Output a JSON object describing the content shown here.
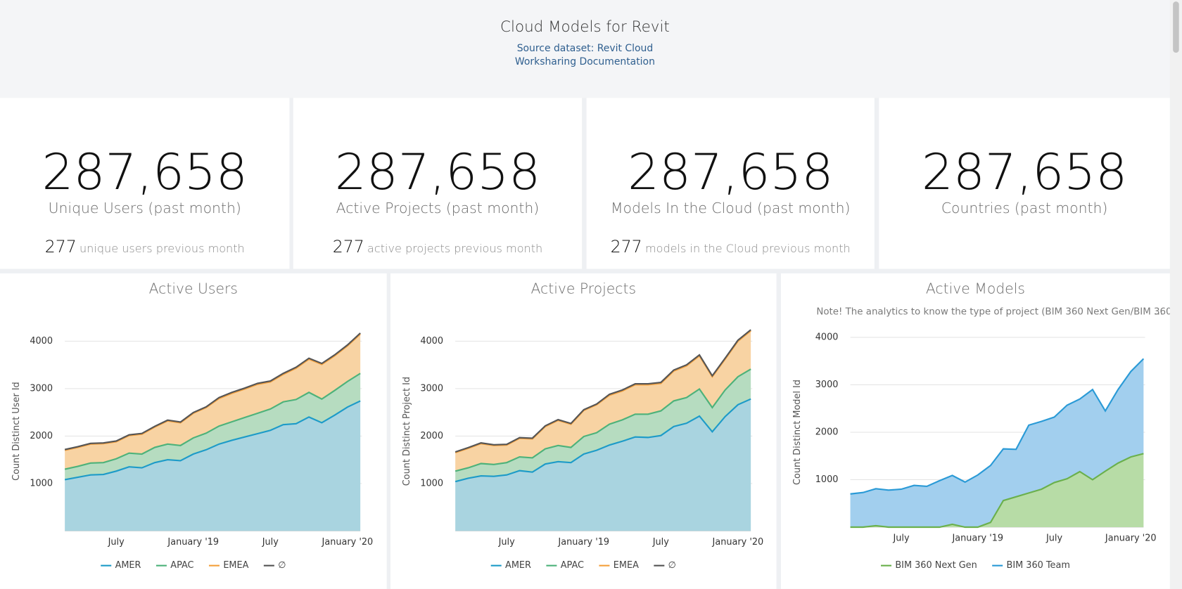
{
  "header": {
    "title": "Cloud Models for Revit",
    "source": "Source dataset: Revit Cloud Worksharing Documentation"
  },
  "kpis": [
    {
      "value": "287,658",
      "label": "Unique Users (past month)",
      "previous": "277",
      "previous_label": "unique users previous month"
    },
    {
      "value": "287,658",
      "label": "Active Projects (past month)",
      "previous": "277",
      "previous_label": "active projects previous month"
    },
    {
      "value": "287,658",
      "label": "Models In the Cloud (past month)",
      "previous": "277",
      "previous_label": "models in the Cloud previous month"
    },
    {
      "value": "287,658",
      "label": "Countries (past month)"
    }
  ],
  "chart_data": [
    {
      "type": "area",
      "stacked": true,
      "title": "Active Users",
      "y_label": "Count Distinct User Id",
      "categories": [
        null,
        null,
        null,
        null,
        "July",
        null,
        null,
        null,
        null,
        null,
        "January '19",
        null,
        null,
        null,
        null,
        null,
        "July",
        null,
        null,
        null,
        null,
        null,
        "January '20",
        null
      ],
      "ylim": [
        0,
        4200
      ],
      "yticks": [
        1000,
        2000,
        3000,
        4000
      ],
      "grid": true,
      "series": [
        {
          "name": "AMER",
          "color": "#1d9bc8",
          "fill": "#a9d4e0",
          "values": [
            1080,
            1130,
            1180,
            1190,
            1260,
            1350,
            1330,
            1440,
            1500,
            1480,
            1620,
            1710,
            1830,
            1910,
            1980,
            2050,
            2120,
            2240,
            2260,
            2400,
            2280,
            2440,
            2610,
            2740
          ]
        },
        {
          "name": "APAC",
          "color": "#4db27a",
          "fill": "#b6dcc0",
          "values": [
            220,
            230,
            250,
            250,
            260,
            290,
            290,
            320,
            330,
            320,
            340,
            350,
            380,
            390,
            410,
            430,
            450,
            480,
            510,
            520,
            500,
            520,
            540,
            580
          ]
        },
        {
          "name": "EMEA",
          "color": "#f4a03c",
          "fill": "#f8d3a3",
          "values": [
            400,
            400,
            400,
            400,
            360,
            370,
            420,
            430,
            490,
            480,
            520,
            540,
            580,
            600,
            600,
            610,
            570,
            580,
            660,
            700,
            730,
            730,
            750,
            830
          ]
        },
        {
          "name": "∅",
          "color": "#555555",
          "fill": "#8a8a8a",
          "values": [
            15,
            15,
            15,
            15,
            15,
            15,
            15,
            15,
            15,
            15,
            15,
            15,
            20,
            20,
            20,
            20,
            20,
            20,
            20,
            20,
            20,
            20,
            20,
            20
          ]
        }
      ]
    },
    {
      "type": "area",
      "stacked": true,
      "title": "Active Projects",
      "y_label": "Count Distinct Project Id",
      "categories": [
        null,
        null,
        null,
        null,
        "July",
        null,
        null,
        null,
        null,
        null,
        "January '19",
        null,
        null,
        null,
        null,
        null,
        "July",
        null,
        null,
        null,
        null,
        null,
        "January '20",
        null
      ],
      "ylim": [
        0,
        4200
      ],
      "yticks": [
        1000,
        2000,
        3000,
        4000
      ],
      "grid": true,
      "series": [
        {
          "name": "AMER",
          "color": "#1d9bc8",
          "fill": "#a9d4e0",
          "values": [
            1040,
            1110,
            1160,
            1150,
            1180,
            1270,
            1240,
            1410,
            1460,
            1440,
            1620,
            1700,
            1810,
            1890,
            1980,
            1970,
            2010,
            2200,
            2270,
            2420,
            2090,
            2410,
            2660,
            2780
          ]
        },
        {
          "name": "APAC",
          "color": "#4db27a",
          "fill": "#b6dcc0",
          "values": [
            220,
            220,
            260,
            250,
            260,
            290,
            300,
            320,
            340,
            320,
            370,
            370,
            440,
            450,
            480,
            490,
            520,
            540,
            540,
            570,
            510,
            560,
            590,
            630
          ]
        },
        {
          "name": "EMEA",
          "color": "#f4a03c",
          "fill": "#f8d3a3",
          "values": [
            390,
            410,
            420,
            400,
            370,
            390,
            400,
            470,
            530,
            490,
            550,
            590,
            610,
            610,
            620,
            620,
            580,
            630,
            670,
            700,
            650,
            650,
            750,
            810
          ]
        },
        {
          "name": "∅",
          "color": "#555555",
          "fill": "#8a8a8a",
          "values": [
            15,
            15,
            15,
            15,
            15,
            15,
            15,
            15,
            15,
            15,
            15,
            15,
            20,
            20,
            20,
            20,
            20,
            20,
            20,
            20,
            20,
            20,
            20,
            20
          ]
        }
      ]
    },
    {
      "type": "area",
      "stacked": true,
      "title": "Active Models",
      "y_label": "Count Distinct Model Id",
      "note": "Note! The analytics to know the type of project (BIM 360 Next Gen/BIM 360",
      "note_more": "...",
      "categories": [
        null,
        null,
        null,
        null,
        "July",
        null,
        null,
        null,
        null,
        null,
        "January '19",
        null,
        null,
        null,
        null,
        null,
        "July",
        null,
        null,
        null,
        null,
        null,
        "January '20",
        null
      ],
      "ylim": [
        0,
        4000
      ],
      "yticks": [
        1000,
        2000,
        3000,
        4000
      ],
      "grid": true,
      "series": [
        {
          "name": "BIM 360 Next Gen",
          "color": "#6ab04c",
          "fill": "#b7dca6",
          "values": [
            0,
            0,
            30,
            0,
            0,
            0,
            0,
            0,
            60,
            0,
            0,
            100,
            560,
            640,
            720,
            800,
            940,
            1020,
            1170,
            1000,
            1180,
            1350,
            1480,
            1550
          ]
        },
        {
          "name": "BIM 360 Team",
          "color": "#2a9ad6",
          "fill": "#a2cfee",
          "values": [
            700,
            730,
            780,
            780,
            800,
            880,
            860,
            980,
            1030,
            950,
            1100,
            1200,
            1090,
            1000,
            1430,
            1430,
            1380,
            1550,
            1530,
            1900,
            1270,
            1550,
            1800,
            2000
          ]
        }
      ]
    }
  ]
}
